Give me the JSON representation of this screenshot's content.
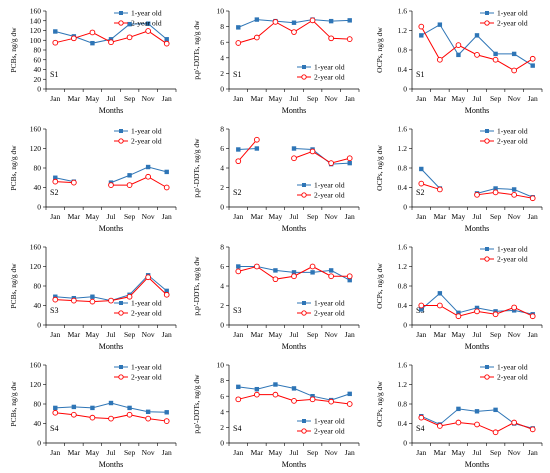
{
  "colors": {
    "one_year": "#2E75B6",
    "two_year": "#FF0000"
  },
  "chart_data": [
    {
      "type": "line",
      "panel": "PCBs S1",
      "ylabel": "PCBs, ng/g dw",
      "xlabel": "Months",
      "site": "S1",
      "ylim": [
        0,
        160
      ],
      "yticks": [
        "0",
        "20",
        "40",
        "60",
        "80",
        "100",
        "120",
        "140",
        "160"
      ],
      "categories": [
        "Jan",
        "Mar",
        "May",
        "Jul",
        "Sep",
        "Nov",
        "Jan"
      ],
      "legend_position": "top-right",
      "series": [
        {
          "name": "1-year old",
          "values": [
            118,
            108,
            94,
            102,
            133,
            134,
            102
          ]
        },
        {
          "name": "2-year old",
          "values": [
            95,
            104,
            116,
            96,
            106,
            119,
            93
          ]
        }
      ]
    },
    {
      "type": "line",
      "panel": "DDTs S1",
      "ylabel": "p,p'-DDTs, ng/g dw",
      "xlabel": "Months",
      "site": "S1",
      "ylim": [
        0,
        10
      ],
      "yticks": [
        "0",
        "2",
        "4",
        "6",
        "8",
        "10"
      ],
      "categories": [
        "Jan",
        "Mar",
        "May",
        "Jul",
        "Sep",
        "Nov",
        "Jan"
      ],
      "legend_position": "bottom-right",
      "series": [
        {
          "name": "1-year old",
          "values": [
            7.9,
            8.9,
            8.7,
            8.5,
            8.9,
            8.7,
            8.8
          ]
        },
        {
          "name": "2-year old",
          "values": [
            5.9,
            6.6,
            8.6,
            7.3,
            8.8,
            6.5,
            6.4
          ]
        }
      ]
    },
    {
      "type": "line",
      "panel": "OCPs S1",
      "ylabel": "OCPs, ng/g dw",
      "xlabel": "Months",
      "site": "S1",
      "ylim": [
        0,
        1.6
      ],
      "yticks": [
        "0",
        "0.4",
        "0.8",
        "1.2",
        "1.6"
      ],
      "categories": [
        "Jan",
        "Mar",
        "May",
        "Jul",
        "Sep",
        "Nov",
        "Jan"
      ],
      "legend_position": "top-right",
      "series": [
        {
          "name": "1-year old",
          "values": [
            1.1,
            1.32,
            0.7,
            1.1,
            0.72,
            0.72,
            0.48
          ]
        },
        {
          "name": "2-year old",
          "values": [
            1.28,
            0.6,
            0.9,
            0.7,
            0.6,
            0.38,
            0.62
          ]
        }
      ]
    },
    {
      "type": "line",
      "panel": "PCBs S2",
      "ylabel": "PCBs, ng/g dw",
      "xlabel": "Months",
      "site": "S2",
      "ylim": [
        0,
        160
      ],
      "yticks": [
        "0",
        "40",
        "80",
        "120",
        "160"
      ],
      "categories": [
        "Jan",
        "Mar",
        "May",
        "Jul",
        "Sep",
        "Nov",
        "Jan"
      ],
      "legend_position": "top-right",
      "series": [
        {
          "name": "1-year old",
          "values": [
            60,
            52,
            null,
            50,
            65,
            82,
            72
          ]
        },
        {
          "name": "2-year old",
          "values": [
            52,
            50,
            null,
            45,
            45,
            62,
            40
          ]
        }
      ]
    },
    {
      "type": "line",
      "panel": "DDTs S2",
      "ylabel": "p,p'-DDTs, ng/g dw",
      "xlabel": "Months",
      "site": "S2",
      "ylim": [
        0,
        8
      ],
      "yticks": [
        "0",
        "2",
        "4",
        "6",
        "8"
      ],
      "categories": [
        "Jan",
        "Mar",
        "May",
        "Jul",
        "Sep",
        "Nov",
        "Jan"
      ],
      "legend_position": "bottom-right",
      "series": [
        {
          "name": "1-year old",
          "values": [
            5.9,
            6.0,
            null,
            6.0,
            5.9,
            4.4,
            4.5
          ]
        },
        {
          "name": "2-year old",
          "values": [
            4.7,
            6.9,
            null,
            5.0,
            5.7,
            4.5,
            5.0
          ]
        }
      ]
    },
    {
      "type": "line",
      "panel": "OCPs S2",
      "ylabel": "OCPs, ng/g dw",
      "xlabel": "Months",
      "site": "S2",
      "ylim": [
        0,
        1.6
      ],
      "yticks": [
        "0",
        "0.4",
        "0.8",
        "1.2",
        "1.6"
      ],
      "categories": [
        "Jan",
        "Mar",
        "May",
        "Jul",
        "Sep",
        "Nov",
        "Jan"
      ],
      "legend_position": "top-right",
      "series": [
        {
          "name": "1-year old",
          "values": [
            0.78,
            0.38,
            null,
            0.28,
            0.38,
            0.36,
            0.2
          ]
        },
        {
          "name": "2-year old",
          "values": [
            0.48,
            0.36,
            null,
            0.25,
            0.3,
            0.25,
            0.18
          ]
        }
      ]
    },
    {
      "type": "line",
      "panel": "PCBs S3",
      "ylabel": "PCBs, ng/g dw",
      "xlabel": "Months",
      "site": "S3",
      "ylim": [
        0,
        160
      ],
      "yticks": [
        "0",
        "40",
        "80",
        "120",
        "160"
      ],
      "categories": [
        "Jan",
        "Mar",
        "May",
        "Jul",
        "Sep",
        "Nov",
        "Jan"
      ],
      "legend_position": "bottom-right",
      "series": [
        {
          "name": "1-year old",
          "values": [
            58,
            55,
            58,
            50,
            62,
            102,
            70
          ]
        },
        {
          "name": "2-year old",
          "values": [
            52,
            50,
            48,
            50,
            58,
            98,
            62
          ]
        }
      ]
    },
    {
      "type": "line",
      "panel": "DDTs S3",
      "ylabel": "p,p'-DDTs, ng/g dw",
      "xlabel": "Months",
      "site": "S3",
      "ylim": [
        0,
        8
      ],
      "yticks": [
        "0",
        "2",
        "4",
        "6",
        "8"
      ],
      "categories": [
        "Jan",
        "Mar",
        "May",
        "Jul",
        "Sep",
        "Nov",
        "Jan"
      ],
      "legend_position": "bottom-right",
      "series": [
        {
          "name": "1-year old",
          "values": [
            6.0,
            6.0,
            5.6,
            5.4,
            5.4,
            5.6,
            4.6
          ]
        },
        {
          "name": "2-year old",
          "values": [
            5.5,
            6.0,
            4.7,
            5.0,
            6.0,
            5.0,
            5.0
          ]
        }
      ]
    },
    {
      "type": "line",
      "panel": "OCPs S3",
      "ylabel": "OCPs, ng/g dw",
      "xlabel": "Months",
      "site": "S3",
      "ylim": [
        0,
        1.6
      ],
      "yticks": [
        "0",
        "0.4",
        "0.8",
        "1.2",
        "1.6"
      ],
      "categories": [
        "Jan",
        "Mar",
        "May",
        "Jul",
        "Sep",
        "Nov",
        "Jan"
      ],
      "legend_position": "top-right",
      "series": [
        {
          "name": "1-year old",
          "values": [
            0.32,
            0.65,
            0.25,
            0.35,
            0.28,
            0.3,
            0.22
          ]
        },
        {
          "name": "2-year old",
          "values": [
            0.4,
            0.4,
            0.18,
            0.28,
            0.22,
            0.36,
            0.18
          ]
        }
      ]
    },
    {
      "type": "line",
      "panel": "PCBs S4",
      "ylabel": "PCBs, ng/g dw",
      "xlabel": "Months",
      "site": "S4",
      "ylim": [
        0,
        160
      ],
      "yticks": [
        "0",
        "40",
        "80",
        "120",
        "160"
      ],
      "categories": [
        "Jan",
        "Mar",
        "May",
        "Jul",
        "Sep",
        "Nov",
        "Jan"
      ],
      "legend_position": "top-right",
      "series": [
        {
          "name": "1-year old",
          "values": [
            72,
            74,
            72,
            82,
            72,
            64,
            63
          ]
        },
        {
          "name": "2-year old",
          "values": [
            62,
            58,
            52,
            50,
            58,
            50,
            45
          ]
        }
      ]
    },
    {
      "type": "line",
      "panel": "DDTs S4",
      "ylabel": "p,p'-DDTs, ng/g dw",
      "xlabel": "Months",
      "site": "S4",
      "ylim": [
        0,
        10
      ],
      "yticks": [
        "0",
        "2",
        "4",
        "6",
        "8",
        "10"
      ],
      "categories": [
        "Jan",
        "Mar",
        "May",
        "Jul",
        "Sep",
        "Nov",
        "Jan"
      ],
      "legend_position": "bottom-right",
      "series": [
        {
          "name": "1-year old",
          "values": [
            7.2,
            6.9,
            7.5,
            7.0,
            6.0,
            5.5,
            6.3
          ]
        },
        {
          "name": "2-year old",
          "values": [
            5.6,
            6.2,
            6.2,
            5.4,
            5.6,
            5.3,
            5.0
          ]
        }
      ]
    },
    {
      "type": "line",
      "panel": "OCPs S4",
      "ylabel": "OCPs, ng/g dw",
      "xlabel": "Months",
      "site": "S4",
      "ylim": [
        0,
        1.6
      ],
      "yticks": [
        "0",
        "0.4",
        "0.8",
        "1.2",
        "1.6"
      ],
      "categories": [
        "Jan",
        "Mar",
        "May",
        "Jul",
        "Sep",
        "Nov",
        "Jan"
      ],
      "legend_position": "top-right",
      "series": [
        {
          "name": "1-year old",
          "values": [
            0.55,
            0.38,
            0.7,
            0.65,
            0.68,
            0.4,
            0.3
          ]
        },
        {
          "name": "2-year old",
          "values": [
            0.52,
            0.35,
            0.42,
            0.38,
            0.22,
            0.42,
            0.28
          ]
        }
      ]
    }
  ]
}
